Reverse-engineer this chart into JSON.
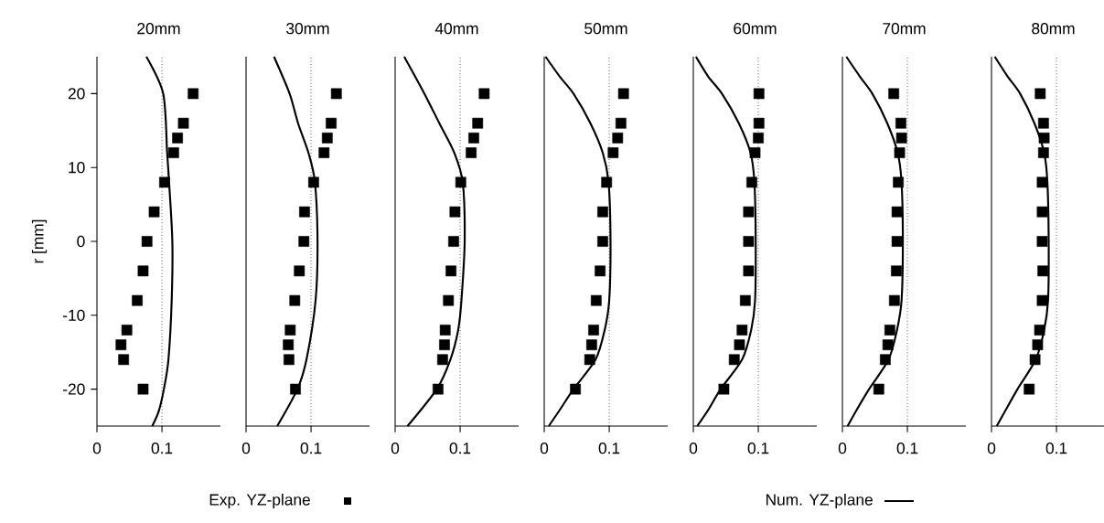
{
  "chart_data": [
    {
      "type": "scatter",
      "title": "20mm",
      "ylabel": "r [mm]",
      "xlim": [
        0,
        0.19
      ],
      "ylim": [
        -25,
        25
      ],
      "xticks": [
        0,
        0.1
      ],
      "yticks": [
        -20,
        -10,
        0,
        10,
        20
      ],
      "legend": "bottom",
      "ref_lines": [
        {
          "axis": "x",
          "value": 0.1,
          "color": "#000000",
          "line_style": "dotted"
        }
      ],
      "series": [
        {
          "name": "Exp. YZ-plane",
          "marker": "square",
          "color": "#000000",
          "x": [
            0.148,
            0.133,
            0.124,
            0.118,
            0.104,
            0.088,
            0.077,
            0.071,
            0.062,
            0.046,
            0.037,
            0.041,
            0.071
          ],
          "values": [
            20,
            16,
            14,
            12,
            8,
            4,
            0,
            -4,
            -8,
            -12,
            -14,
            -16,
            -20
          ]
        },
        {
          "name": "Num. YZ-plane",
          "type": "line",
          "line_style": "solid",
          "color": "#000000",
          "x": [
            0.076,
            0.102,
            0.108,
            0.111,
            0.116,
            0.115,
            0.11,
            0.103,
            0.095,
            0.085
          ],
          "values": [
            25,
            20,
            12,
            8,
            0,
            -8,
            -16,
            -20,
            -23,
            -25
          ]
        }
      ]
    },
    {
      "type": "scatter",
      "title": "30mm",
      "xlim": [
        0,
        0.19
      ],
      "ylim": [
        -25,
        25
      ],
      "xticks": [
        0,
        0.1
      ],
      "tick_labels": "x",
      "ref_lines": [
        {
          "axis": "x",
          "value": 0.1,
          "color": "#000000",
          "line_style": "dotted"
        }
      ],
      "series": [
        {
          "marker": "square",
          "color": "#000000",
          "x": [
            0.139,
            0.131,
            0.125,
            0.12,
            0.104,
            0.09,
            0.089,
            0.082,
            0.075,
            0.068,
            0.065,
            0.066,
            0.076
          ],
          "values": [
            20,
            16,
            14,
            12,
            8,
            4,
            0,
            -4,
            -8,
            -12,
            -14,
            -16,
            -20
          ]
        },
        {
          "type": "line",
          "line_style": "solid",
          "color": "#000000",
          "x": [
            0.043,
            0.067,
            0.08,
            0.096,
            0.106,
            0.11,
            0.107,
            0.093,
            0.079,
            0.048
          ],
          "values": [
            25,
            20,
            16,
            12,
            8,
            0,
            -8,
            -16,
            -20,
            -25
          ]
        }
      ]
    },
    {
      "type": "scatter",
      "title": "40mm",
      "xlim": [
        0,
        0.19
      ],
      "ylim": [
        -25,
        25
      ],
      "xticks": [
        0,
        0.1
      ],
      "tick_labels": "x",
      "ref_lines": [
        {
          "axis": "x",
          "value": 0.1,
          "color": "#000000",
          "line_style": "dotted"
        }
      ],
      "series": [
        {
          "marker": "square",
          "color": "#000000",
          "x": [
            0.137,
            0.127,
            0.121,
            0.117,
            0.101,
            0.092,
            0.09,
            0.086,
            0.082,
            0.077,
            0.076,
            0.073,
            0.066
          ],
          "values": [
            20,
            16,
            14,
            12,
            8,
            4,
            0,
            -4,
            -8,
            -12,
            -14,
            -16,
            -20
          ]
        },
        {
          "type": "line",
          "line_style": "solid",
          "color": "#000000",
          "x": [
            0.014,
            0.045,
            0.068,
            0.091,
            0.104,
            0.107,
            0.102,
            0.097,
            0.085,
            0.064,
            0.019
          ],
          "values": [
            25,
            20,
            16,
            12,
            8,
            0,
            -8,
            -12,
            -16,
            -20,
            -25
          ]
        }
      ]
    },
    {
      "type": "scatter",
      "title": "50mm",
      "xlim": [
        0,
        0.19
      ],
      "ylim": [
        -25,
        25
      ],
      "xticks": [
        0,
        0.1
      ],
      "tick_labels": "x",
      "ref_lines": [
        {
          "axis": "x",
          "value": 0.1,
          "color": "#000000",
          "line_style": "dotted"
        }
      ],
      "series": [
        {
          "marker": "square",
          "color": "#000000",
          "x": [
            0.122,
            0.118,
            0.113,
            0.106,
            0.096,
            0.09,
            0.09,
            0.086,
            0.08,
            0.076,
            0.073,
            0.07,
            0.048
          ],
          "values": [
            20,
            16,
            14,
            12,
            8,
            4,
            0,
            -4,
            -8,
            -12,
            -14,
            -16,
            -20
          ]
        },
        {
          "type": "line",
          "line_style": "solid",
          "color": "#000000",
          "x": [
            0.002,
            0.024,
            0.045,
            0.071,
            0.09,
            0.099,
            0.102,
            0.1,
            0.093,
            0.079,
            0.045,
            0.024,
            0.007
          ],
          "values": [
            25,
            22.3,
            20,
            16,
            12,
            8,
            0,
            -8,
            -12,
            -16,
            -20,
            -22.8,
            -25
          ]
        }
      ]
    },
    {
      "type": "scatter",
      "title": "60mm",
      "xlim": [
        0,
        0.19
      ],
      "ylim": [
        -25,
        25
      ],
      "xticks": [
        0,
        0.1
      ],
      "tick_labels": "x",
      "ref_lines": [
        {
          "axis": "x",
          "value": 0.1,
          "color": "#000000",
          "line_style": "dotted"
        }
      ],
      "series": [
        {
          "marker": "square",
          "color": "#000000",
          "x": [
            0.101,
            0.101,
            0.1,
            0.095,
            0.09,
            0.085,
            0.085,
            0.085,
            0.08,
            0.075,
            0.071,
            0.063,
            0.047
          ],
          "values": [
            20,
            16,
            14,
            12,
            8,
            4,
            0,
            -4,
            -8,
            -12,
            -14,
            -16,
            -20
          ]
        },
        {
          "type": "line",
          "line_style": "solid",
          "color": "#000000",
          "x": [
            0.004,
            0.023,
            0.044,
            0.07,
            0.088,
            0.094,
            0.096,
            0.095,
            0.089,
            0.075,
            0.042,
            0.023,
            0.006
          ],
          "values": [
            25,
            22.3,
            20,
            16,
            12,
            8,
            0,
            -8,
            -12,
            -16,
            -20,
            -22.8,
            -25
          ]
        }
      ]
    },
    {
      "type": "scatter",
      "title": "70mm",
      "xlim": [
        0,
        0.19
      ],
      "ylim": [
        -25,
        25
      ],
      "xticks": [
        0,
        0.1
      ],
      "tick_labels": "x",
      "ref_lines": [
        {
          "axis": "x",
          "value": 0.1,
          "color": "#000000",
          "line_style": "dotted"
        }
      ],
      "series": [
        {
          "marker": "square",
          "color": "#000000",
          "x": [
            0.079,
            0.09,
            0.091,
            0.088,
            0.086,
            0.084,
            0.084,
            0.083,
            0.08,
            0.073,
            0.07,
            0.066,
            0.056
          ],
          "values": [
            20,
            16,
            14,
            12,
            8,
            4,
            0,
            -4,
            -8,
            -12,
            -14,
            -16,
            -20
          ]
        },
        {
          "type": "line",
          "line_style": "solid",
          "color": "#000000",
          "x": [
            0.006,
            0.027,
            0.046,
            0.069,
            0.085,
            0.091,
            0.093,
            0.091,
            0.084,
            0.071,
            0.041,
            0.022,
            0.008
          ],
          "values": [
            25,
            22.3,
            20,
            16,
            12,
            8,
            0,
            -8,
            -12,
            -16,
            -20,
            -22.8,
            -25
          ]
        }
      ]
    },
    {
      "type": "scatter",
      "title": "80mm",
      "xlim": [
        0,
        0.19
      ],
      "ylim": [
        -25,
        25
      ],
      "xticks": [
        0,
        0.1
      ],
      "tick_labels": "x",
      "ref_lines": [
        {
          "axis": "x",
          "value": 0.1,
          "color": "#000000",
          "line_style": "dotted"
        }
      ],
      "series": [
        {
          "marker": "square",
          "color": "#000000",
          "x": [
            0.075,
            0.08,
            0.081,
            0.08,
            0.078,
            0.078,
            0.078,
            0.079,
            0.078,
            0.074,
            0.071,
            0.067,
            0.058
          ],
          "values": [
            20,
            16,
            14,
            12,
            8,
            4,
            0,
            -4,
            -8,
            -12,
            -14,
            -16,
            -20
          ]
        },
        {
          "type": "line",
          "line_style": "solid",
          "color": "#000000",
          "x": [
            0.005,
            0.025,
            0.044,
            0.066,
            0.081,
            0.086,
            0.088,
            0.087,
            0.081,
            0.068,
            0.04,
            0.022,
            0.008
          ],
          "values": [
            25,
            22.3,
            20,
            16,
            12,
            8,
            0,
            -8,
            -12,
            -16,
            -20,
            -22.8,
            -25
          ]
        }
      ]
    }
  ]
}
